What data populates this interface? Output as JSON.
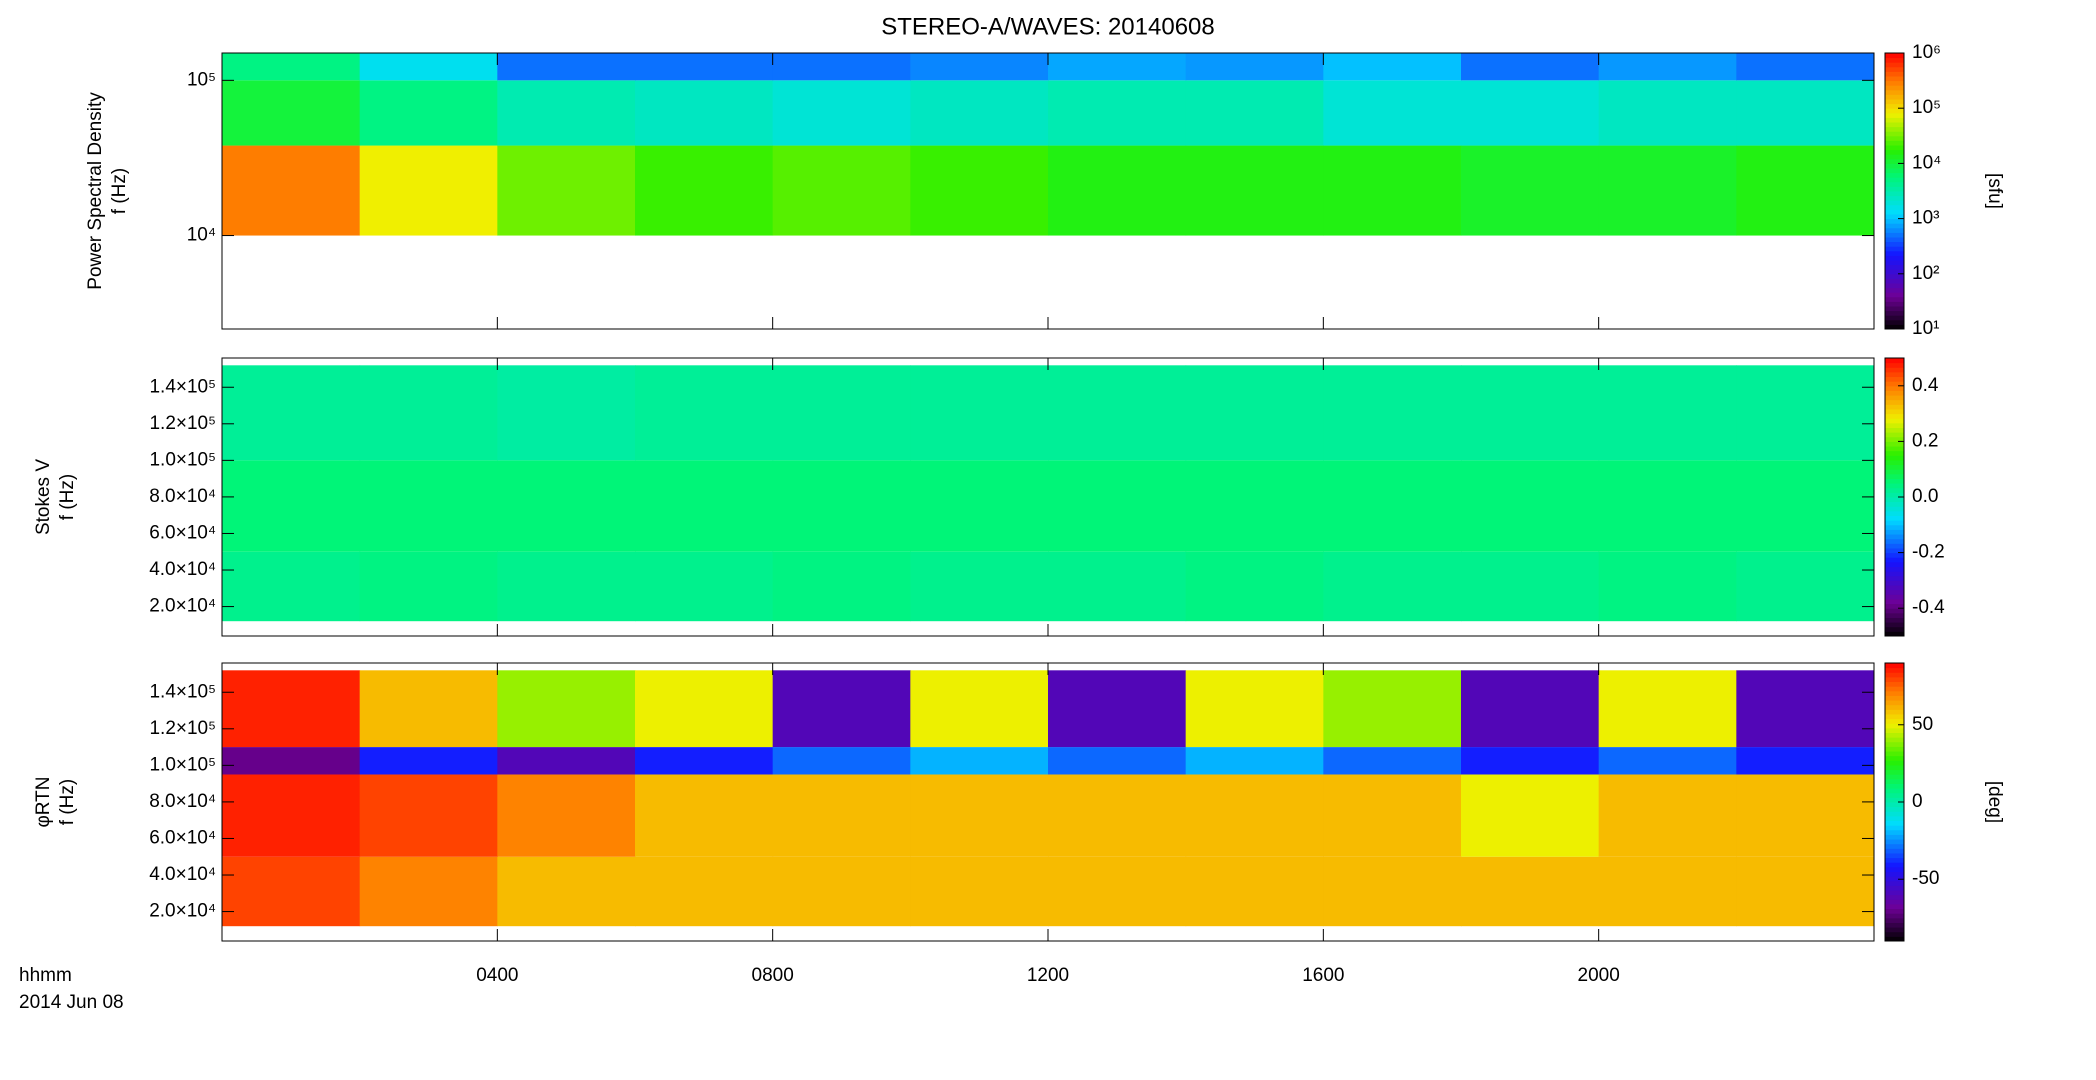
{
  "title": "STEREO-A/WAVES: 20140608",
  "x_axis": {
    "xlim": [
      0,
      24
    ],
    "xticks": [
      {
        "value": 4,
        "label": "0400"
      },
      {
        "value": 8,
        "label": "0800"
      },
      {
        "value": 12,
        "label": "1200"
      },
      {
        "value": 16,
        "label": "1600"
      },
      {
        "value": 20,
        "label": "2000"
      }
    ],
    "label_lines": [
      "hhmm",
      "2014 Jun 08"
    ]
  },
  "chart_data": [
    {
      "type": "heatmap",
      "ylabel": [
        "Power Spectral Density",
        "f (Hz)"
      ],
      "ylog": true,
      "ylim": [
        2500,
        150000
      ],
      "yticks": [
        {
          "value": 10000,
          "label": "10⁴"
        },
        {
          "value": 100000,
          "label": "10⁵"
        }
      ],
      "x_edges": [
        0,
        2,
        4,
        6,
        8,
        10,
        12,
        14,
        16,
        18,
        20,
        22,
        24
      ],
      "y_edges": [
        10000,
        38000,
        100000,
        150000
      ],
      "values": [
        [
          300000,
          80000,
          30000,
          20000,
          25000,
          20000,
          15000,
          15000,
          15000,
          12000,
          12000,
          15000
        ],
        [
          10000,
          5000,
          3000,
          2500,
          2000,
          2500,
          3000,
          3000,
          2000,
          2000,
          2500,
          2500
        ],
        [
          5000,
          1500,
          500,
          500,
          500,
          600,
          800,
          700,
          1000,
          500,
          700,
          500
        ]
      ],
      "colormap": "rainbow",
      "zlog": true,
      "zlim": [
        10,
        1000000
      ],
      "zticks": [
        {
          "value": 10,
          "label": "10¹"
        },
        {
          "value": 100,
          "label": "10²"
        },
        {
          "value": 1000,
          "label": "10³"
        },
        {
          "value": 10000,
          "label": "10⁴"
        },
        {
          "value": 100000,
          "label": "10⁵"
        },
        {
          "value": 1000000,
          "label": "10⁶"
        }
      ],
      "zlabel": "[sfu]"
    },
    {
      "type": "heatmap",
      "ylabel": [
        "Stokes V",
        "f (Hz)"
      ],
      "ylog": false,
      "ylim": [
        3900,
        156000
      ],
      "yticks": [
        {
          "value": 20000,
          "label": "2.0×10⁴"
        },
        {
          "value": 40000,
          "label": "4.0×10⁴"
        },
        {
          "value": 60000,
          "label": "6.0×10⁴"
        },
        {
          "value": 80000,
          "label": "8.0×10⁴"
        },
        {
          "value": 100000,
          "label": "1.0×10⁵"
        },
        {
          "value": 120000,
          "label": "1.2×10⁵"
        },
        {
          "value": 140000,
          "label": "1.4×10⁵"
        }
      ],
      "x_edges": [
        0,
        2,
        4,
        6,
        8,
        10,
        12,
        14,
        16,
        18,
        20,
        22,
        24
      ],
      "y_edges": [
        12000,
        50000,
        100000,
        152000
      ],
      "values": [
        [
          0.03,
          0.04,
          0.03,
          0.03,
          0.04,
          0.03,
          0.03,
          0.04,
          0.03,
          0.03,
          0.04,
          0.03
        ],
        [
          0.05,
          0.05,
          0.05,
          0.05,
          0.05,
          0.05,
          0.05,
          0.05,
          0.05,
          0.05,
          0.05,
          0.05
        ],
        [
          0.02,
          0.02,
          0.01,
          0.02,
          0.02,
          0.02,
          0.02,
          0.02,
          0.02,
          0.02,
          0.02,
          0.02
        ]
      ],
      "colormap": "rainbow",
      "zlog": false,
      "zlim": [
        -0.5,
        0.5
      ],
      "zticks": [
        -0.4,
        -0.2,
        {
          "value": 0,
          "label": "0.0"
        },
        0.2,
        0.4
      ]
    },
    {
      "type": "heatmap",
      "ylabel": [
        "φRTN",
        "f (Hz)"
      ],
      "ylog": false,
      "ylim": [
        3900,
        156000
      ],
      "yticks": [
        {
          "value": 20000,
          "label": "2.0×10⁴"
        },
        {
          "value": 40000,
          "label": "4.0×10⁴"
        },
        {
          "value": 60000,
          "label": "6.0×10⁴"
        },
        {
          "value": 80000,
          "label": "8.0×10⁴"
        },
        {
          "value": 100000,
          "label": "1.0×10⁵"
        },
        {
          "value": 120000,
          "label": "1.2×10⁵"
        },
        {
          "value": 140000,
          "label": "1.4×10⁵"
        }
      ],
      "x_edges": [
        0,
        2,
        4,
        6,
        8,
        10,
        12,
        14,
        16,
        18,
        20,
        22,
        24
      ],
      "y_edges": [
        12000,
        50000,
        95000,
        110000,
        152000
      ],
      "values": [
        [
          80,
          70,
          60,
          60,
          60,
          60,
          60,
          60,
          60,
          60,
          60,
          60
        ],
        [
          85,
          80,
          70,
          60,
          60,
          60,
          60,
          60,
          60,
          50,
          60,
          60
        ],
        [
          -70,
          -40,
          -60,
          -40,
          -30,
          -20,
          -30,
          -20,
          -30,
          -40,
          -30,
          -40
        ],
        [
          85,
          60,
          40,
          50,
          -60,
          50,
          -60,
          50,
          40,
          -60,
          50,
          -60
        ]
      ],
      "colormap": "rainbow",
      "zlog": false,
      "zlim": [
        -90,
        90
      ],
      "zticks": [
        -50,
        0,
        50
      ],
      "zlabel": "[deg]"
    }
  ]
}
